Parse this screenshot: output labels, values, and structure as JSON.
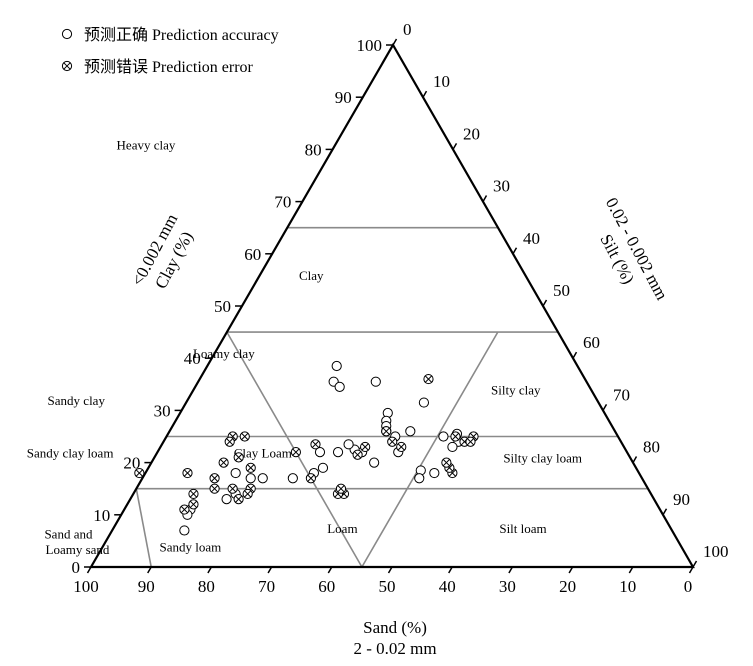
{
  "chart_data": {
    "type": "scatter",
    "subtype": "ternary",
    "legend": {
      "placement": "top-left",
      "entries": [
        {
          "id": "correct",
          "marker": "open-circle",
          "label": "预测正确 Prediction accuracy"
        },
        {
          "id": "error",
          "marker": "crossed-circle",
          "label": "预测错误 Prediction error"
        }
      ]
    },
    "axes": {
      "sand": {
        "labels": [
          "Sand (%)",
          "2 - 0.02 mm"
        ],
        "range": [
          0,
          100
        ],
        "ticks": [
          "100",
          "90",
          "80",
          "70",
          "60",
          "50",
          "40",
          "30",
          "20",
          "10",
          "0"
        ]
      },
      "clay": {
        "labels": [
          "<0.002 mm",
          "Clay (%)"
        ],
        "range": [
          0,
          100
        ],
        "ticks": [
          "0",
          "10",
          "20",
          "30",
          "40",
          "50",
          "60",
          "70",
          "80",
          "90",
          "100"
        ]
      },
      "silt": {
        "labels": [
          "0.02 - 0.002 mm",
          "Silt (%)"
        ],
        "range": [
          0,
          100
        ],
        "ticks": [
          "0",
          "10",
          "20",
          "30",
          "40",
          "50",
          "60",
          "70",
          "80",
          "90",
          "100"
        ]
      }
    },
    "regions": [
      {
        "name": "Heavy clay",
        "sand": 51,
        "clay": 80
      },
      {
        "name": "Clay",
        "sand": 36,
        "clay": 55
      },
      {
        "name": "Loamy clay",
        "sand": 58,
        "clay": 40
      },
      {
        "name": "Sandy clay",
        "sand": 87,
        "clay": 31
      },
      {
        "name": "Silty clay",
        "sand": 13,
        "clay": 33
      },
      {
        "name": "Sandy clay loam",
        "sand": 93,
        "clay": 21
      },
      {
        "name": "Clay Loam",
        "sand": 61,
        "clay": 21
      },
      {
        "name": "Silty clay loam",
        "sand": 15,
        "clay": 20
      },
      {
        "name": "Sand and",
        "sand": 101,
        "clay": 5.5
      },
      {
        "name": "Loamy sand",
        "sand": 101,
        "clay": 2.5
      },
      {
        "name": "Sandy loam",
        "sand": 82,
        "clay": 3
      },
      {
        "name": "Loam",
        "sand": 55,
        "clay": 6.5
      },
      {
        "name": "Silt loam",
        "sand": 25,
        "clay": 6.5
      }
    ],
    "boundaries": [
      {
        "from": {
          "sand": 35,
          "clay": 65
        },
        "to": {
          "sand": 0,
          "clay": 65
        }
      },
      {
        "from": {
          "sand": 55,
          "clay": 45
        },
        "to": {
          "sand": 0,
          "clay": 45
        }
      },
      {
        "from": {
          "sand": 75,
          "clay": 25
        },
        "to": {
          "sand": 0,
          "clay": 25
        }
      },
      {
        "from": {
          "sand": 85,
          "clay": 15
        },
        "to": {
          "sand": 0,
          "clay": 15
        }
      },
      {
        "from": {
          "sand": 55,
          "clay": 45
        },
        "to": {
          "sand": 55,
          "clay": 0
        }
      },
      {
        "from": {
          "sand": 10,
          "clay": 45
        },
        "to": {
          "sand": 55,
          "clay": 0
        }
      },
      {
        "from": {
          "sand": 90,
          "clay": 0
        },
        "to": {
          "sand": 85,
          "clay": 15
        }
      }
    ],
    "series": [
      {
        "id": "correct",
        "points": [
          {
            "sand": 40,
            "clay": 38.5
          },
          {
            "sand": 42,
            "clay": 35.5
          },
          {
            "sand": 41.5,
            "clay": 34.5
          },
          {
            "sand": 35,
            "clay": 35.5
          },
          {
            "sand": 29,
            "clay": 31.5
          },
          {
            "sand": 36,
            "clay": 29.5
          },
          {
            "sand": 37,
            "clay": 28
          },
          {
            "sand": 37.5,
            "clay": 27
          },
          {
            "sand": 38,
            "clay": 26
          },
          {
            "sand": 37,
            "clay": 25
          },
          {
            "sand": 34,
            "clay": 26
          },
          {
            "sand": 29,
            "clay": 25
          },
          {
            "sand": 26.5,
            "clay": 25.5
          },
          {
            "sand": 27,
            "clay": 24
          },
          {
            "sand": 28.5,
            "clay": 23
          },
          {
            "sand": 38,
            "clay": 22
          },
          {
            "sand": 36,
            "clay": 18.5
          },
          {
            "sand": 34,
            "clay": 18
          },
          {
            "sand": 37,
            "clay": 17
          },
          {
            "sand": 43,
            "clay": 20
          },
          {
            "sand": 44,
            "clay": 22
          },
          {
            "sand": 45,
            "clay": 22.5
          },
          {
            "sand": 45.5,
            "clay": 23.5
          },
          {
            "sand": 48,
            "clay": 22
          },
          {
            "sand": 51,
            "clay": 22
          },
          {
            "sand": 52,
            "clay": 19
          },
          {
            "sand": 54,
            "clay": 18
          },
          {
            "sand": 58,
            "clay": 17
          },
          {
            "sand": 63,
            "clay": 17
          },
          {
            "sand": 65,
            "clay": 17
          },
          {
            "sand": 67,
            "clay": 18
          },
          {
            "sand": 69,
            "clay": 14
          },
          {
            "sand": 71,
            "clay": 13
          },
          {
            "sand": 78,
            "clay": 11
          },
          {
            "sand": 79,
            "clay": 10
          },
          {
            "sand": 81,
            "clay": 7
          }
        ]
      },
      {
        "id": "error",
        "points": [
          {
            "sand": 26,
            "clay": 36
          },
          {
            "sand": 27,
            "clay": 25
          },
          {
            "sand": 24,
            "clay": 25
          },
          {
            "sand": 26,
            "clay": 24
          },
          {
            "sand": 25,
            "clay": 24
          },
          {
            "sand": 31,
            "clay": 18
          },
          {
            "sand": 31,
            "clay": 19
          },
          {
            "sand": 31,
            "clay": 20
          },
          {
            "sand": 38,
            "clay": 26
          },
          {
            "sand": 38,
            "clay": 24
          },
          {
            "sand": 37,
            "clay": 23
          },
          {
            "sand": 43,
            "clay": 23
          },
          {
            "sand": 45,
            "clay": 21.5
          },
          {
            "sand": 51,
            "clay": 23.5
          },
          {
            "sand": 55,
            "clay": 22
          },
          {
            "sand": 62,
            "clay": 25
          },
          {
            "sand": 64,
            "clay": 25
          },
          {
            "sand": 65,
            "clay": 24
          },
          {
            "sand": 65,
            "clay": 21
          },
          {
            "sand": 64,
            "clay": 19
          },
          {
            "sand": 68,
            "clay": 20
          },
          {
            "sand": 66,
            "clay": 15
          },
          {
            "sand": 67,
            "clay": 14
          },
          {
            "sand": 69,
            "clay": 15
          },
          {
            "sand": 72,
            "clay": 15
          },
          {
            "sand": 76,
            "clay": 14
          },
          {
            "sand": 71,
            "clay": 17
          },
          {
            "sand": 75,
            "clay": 18
          },
          {
            "sand": 77,
            "clay": 12
          },
          {
            "sand": 79,
            "clay": 11
          },
          {
            "sand": 83,
            "clay": 18
          },
          {
            "sand": 51,
            "clay": 14
          },
          {
            "sand": 52,
            "clay": 14
          },
          {
            "sand": 51,
            "clay": 15
          },
          {
            "sand": 55,
            "clay": 17
          },
          {
            "sand": 69,
            "clay": 13
          }
        ]
      }
    ]
  }
}
